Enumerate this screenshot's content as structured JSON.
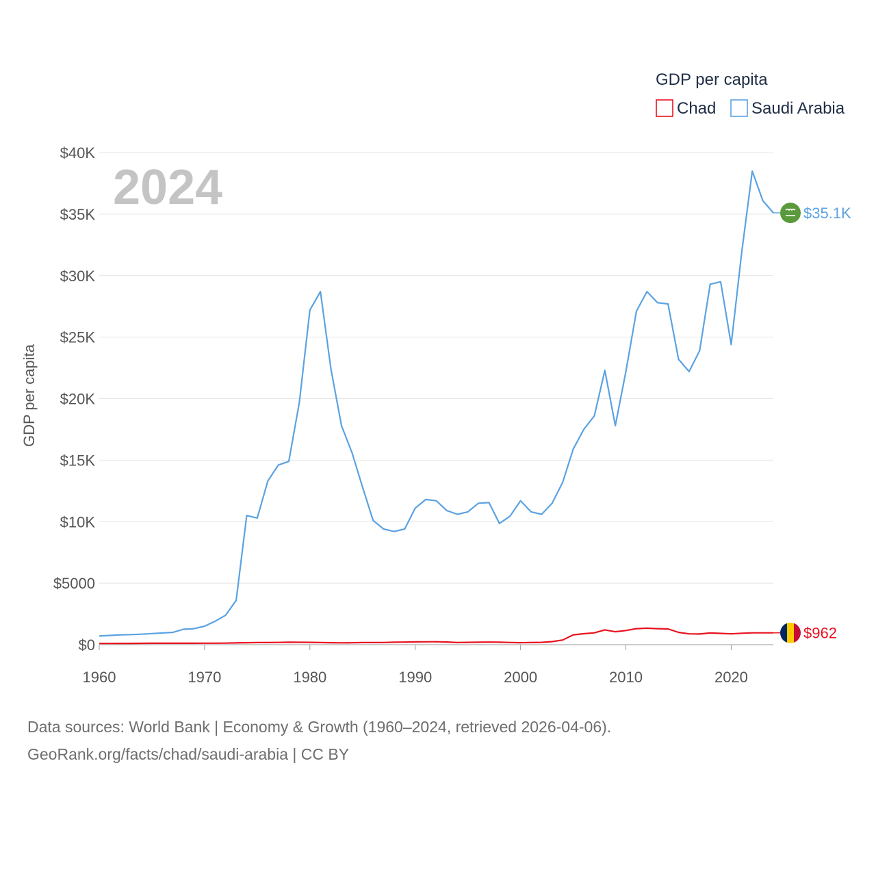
{
  "chart_data": {
    "type": "line",
    "legend_title": "GDP per capita",
    "ylabel": "GDP per capita",
    "year_label": "2024",
    "ylim": [
      0,
      40000
    ],
    "xlim": [
      1960,
      2024
    ],
    "y_ticks": [
      {
        "value": 0,
        "label": "$0"
      },
      {
        "value": 5000,
        "label": "$5000"
      },
      {
        "value": 10000,
        "label": "$10K"
      },
      {
        "value": 15000,
        "label": "$15K"
      },
      {
        "value": 20000,
        "label": "$20K"
      },
      {
        "value": 25000,
        "label": "$25K"
      },
      {
        "value": 30000,
        "label": "$30K"
      },
      {
        "value": 35000,
        "label": "$35K"
      },
      {
        "value": 40000,
        "label": "$40K"
      }
    ],
    "x_ticks": [
      {
        "value": 1960,
        "label": "1960"
      },
      {
        "value": 1970,
        "label": "1970"
      },
      {
        "value": 1980,
        "label": "1980"
      },
      {
        "value": 1990,
        "label": "1990"
      },
      {
        "value": 2000,
        "label": "2000"
      },
      {
        "value": 2010,
        "label": "2010"
      },
      {
        "value": 2020,
        "label": "2020"
      }
    ],
    "x": [
      1960,
      1961,
      1962,
      1963,
      1964,
      1965,
      1966,
      1967,
      1968,
      1969,
      1970,
      1971,
      1972,
      1973,
      1974,
      1975,
      1976,
      1977,
      1978,
      1979,
      1980,
      1981,
      1982,
      1983,
      1984,
      1985,
      1986,
      1987,
      1988,
      1989,
      1990,
      1991,
      1992,
      1993,
      1994,
      1995,
      1996,
      1997,
      1998,
      1999,
      2000,
      2001,
      2002,
      2003,
      2004,
      2005,
      2006,
      2007,
      2008,
      2009,
      2010,
      2011,
      2012,
      2013,
      2014,
      2015,
      2016,
      2017,
      2018,
      2019,
      2020,
      2021,
      2022,
      2023,
      2024
    ],
    "series": [
      {
        "name": "Chad",
        "color": "#e8121f",
        "flag": "chad-flag",
        "end_label": "$962",
        "values": [
          100,
          102,
          105,
          108,
          112,
          115,
          117,
          118,
          115,
          118,
          120,
          122,
          130,
          145,
          160,
          170,
          175,
          185,
          200,
          195,
          190,
          175,
          160,
          150,
          155,
          170,
          175,
          180,
          200,
          210,
          230,
          235,
          240,
          215,
          170,
          190,
          200,
          210,
          200,
          180,
          160,
          170,
          190,
          250,
          380,
          800,
          890,
          960,
          1200,
          1050,
          1150,
          1300,
          1340,
          1300,
          1280,
          1000,
          880,
          870,
          950,
          920,
          880,
          930,
          960,
          960,
          962
        ]
      },
      {
        "name": "Saudi Arabia",
        "color": "#5ba2e2",
        "flag": "saudi-arabia-flag",
        "end_label": "$35.1K",
        "values": [
          700,
          750,
          800,
          820,
          850,
          900,
          950,
          1000,
          1250,
          1300,
          1500,
          1900,
          2400,
          3600,
          10500,
          10300,
          13300,
          14600,
          14900,
          19700,
          27200,
          28700,
          22400,
          17800,
          15600,
          12800,
          10100,
          9400,
          9200,
          9400,
          11100,
          11800,
          11700,
          10900,
          10600,
          10800,
          11500,
          11550,
          9850,
          10450,
          11700,
          10800,
          10600,
          11500,
          13200,
          15900,
          17500,
          18600,
          22300,
          17800,
          22200,
          27100,
          28700,
          27800,
          27700,
          23200,
          22200,
          23900,
          29300,
          29500,
          24400,
          31900,
          38500,
          36100,
          35100
        ]
      }
    ]
  },
  "footer": {
    "line1": "Data sources: World Bank | Economy & Growth (1960–2024, retrieved 2026-04-06).",
    "line2": "GeoRank.org/facts/chad/saudi-arabia | CC BY"
  }
}
